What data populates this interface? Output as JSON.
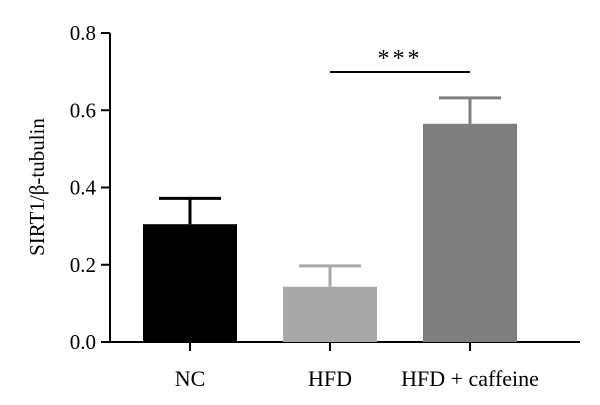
{
  "chart_data": {
    "type": "bar",
    "ylabel": "SIRT1/β-tubulin",
    "xlabel": "",
    "title": "",
    "ylim": [
      0,
      0.8
    ],
    "yticks": [
      "0.0",
      "0.2",
      "0.4",
      "0.6",
      "0.8"
    ],
    "ytick_values": [
      0,
      0.2,
      0.4,
      0.6,
      0.8
    ],
    "categories": [
      "NC",
      "HFD",
      "HFD + caffeine"
    ],
    "values": [
      0.305,
      0.143,
      0.565
    ],
    "error_upper": [
      0.372,
      0.197,
      0.632
    ],
    "colors": [
      "#000000",
      "#a8a8a8",
      "#7f7f7f"
    ],
    "grid": false,
    "significance": [
      {
        "from": "HFD",
        "to": "HFD + caffeine",
        "label": "***"
      }
    ]
  }
}
